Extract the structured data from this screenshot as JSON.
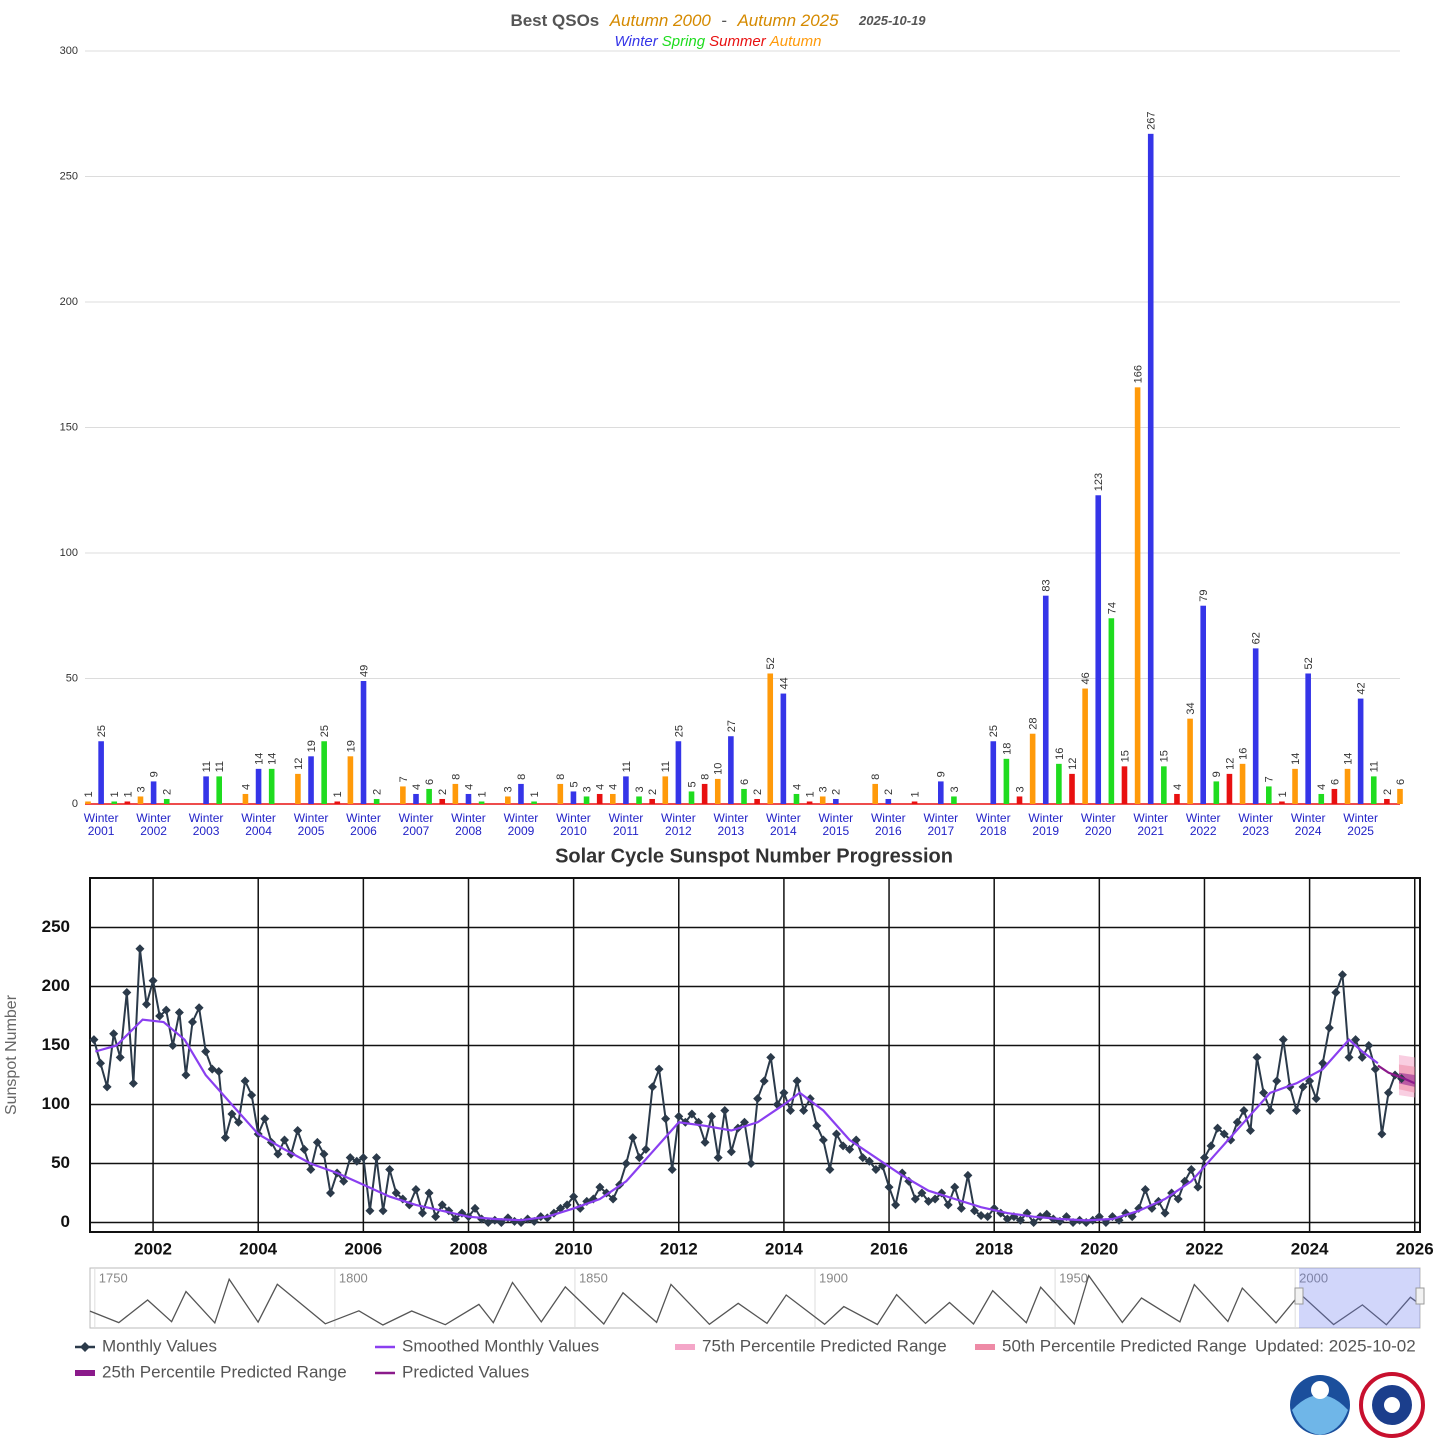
{
  "chart_data": [
    {
      "type": "bar",
      "title": "Best QSOs",
      "title_from": "Autumn 2000",
      "title_separator": "-",
      "title_to": "Autumn 2025",
      "date": "2025-10-19",
      "categories": [
        null,
        "Winter 2001",
        "Winter 2002",
        "Winter 2003",
        "Winter 2004",
        "Winter 2005",
        "Winter 2006",
        "Winter 2007",
        "Winter 2008",
        "Winter 2009",
        "Winter 2010",
        "Winter 2011",
        "Winter 2012",
        "Winter 2013",
        "Winter 2014",
        "Winter 2015",
        "Winter 2016",
        "Winter 2017",
        "Winter 2018",
        "Winter 2019",
        "Winter 2020",
        "Winter 2021",
        "Winter 2022",
        "Winter 2023",
        "Winter 2024",
        "Winter 2025"
      ],
      "series": [
        {
          "name": "Winter",
          "color": "#3535e8",
          "values": [
            null,
            25,
            9,
            11,
            14,
            19,
            49,
            4,
            4,
            8,
            5,
            11,
            25,
            27,
            44,
            2,
            2,
            9,
            25,
            83,
            123,
            267,
            79,
            62,
            52,
            42
          ]
        },
        {
          "name": "Spring",
          "color": "#1fdc1f",
          "values": [
            null,
            1,
            2,
            11,
            14,
            25,
            2,
            6,
            1,
            1,
            3,
            3,
            5,
            6,
            4,
            null,
            null,
            3,
            18,
            16,
            74,
            15,
            9,
            7,
            4,
            11
          ]
        },
        {
          "name": "Summer",
          "color": "#e81010",
          "values": [
            null,
            1,
            null,
            null,
            null,
            1,
            null,
            2,
            null,
            null,
            4,
            2,
            8,
            2,
            1,
            null,
            1,
            null,
            3,
            12,
            15,
            4,
            12,
            1,
            6,
            2
          ]
        },
        {
          "name": "Autumn",
          "color": "#ff9a0a",
          "values": [
            1,
            3,
            null,
            4,
            12,
            19,
            7,
            8,
            3,
            8,
            4,
            11,
            10,
            52,
            3,
            8,
            null,
            null,
            28,
            46,
            166,
            34,
            16,
            14,
            14,
            6
          ]
        }
      ],
      "ylim": [
        0,
        300
      ],
      "yticks": [
        0,
        50,
        100,
        150,
        200,
        250,
        300
      ],
      "grid": true
    },
    {
      "type": "line",
      "title": "Solar Cycle Sunspot Number Progression",
      "y_label": "Sunspot Number",
      "xlim": [
        2000.8,
        2026.1
      ],
      "xticks": [
        2002,
        2004,
        2006,
        2008,
        2010,
        2012,
        2014,
        2016,
        2018,
        2020,
        2022,
        2024,
        2026
      ],
      "ylim": [
        -8,
        292
      ],
      "yticks": [
        0,
        50,
        100,
        150,
        200,
        250
      ],
      "grid": true,
      "series": [
        {
          "name": "Monthly Values",
          "color": "#2b3a4a",
          "marker": "diamond",
          "x": [
            2000.875,
            2001,
            2001.125,
            2001.25,
            2001.375,
            2001.5,
            2001.625,
            2001.75,
            2001.875,
            2002,
            2002.125,
            2002.25,
            2002.375,
            2002.5,
            2002.625,
            2002.75,
            2002.875,
            2003,
            2003.125,
            2003.25,
            2003.375,
            2003.5,
            2003.625,
            2003.75,
            2003.875,
            2004,
            2004.125,
            2004.25,
            2004.375,
            2004.5,
            2004.625,
            2004.75,
            2004.875,
            2005,
            2005.125,
            2005.25,
            2005.375,
            2005.5,
            2005.625,
            2005.75,
            2005.875,
            2006,
            2006.125,
            2006.25,
            2006.375,
            2006.5,
            2006.625,
            2006.75,
            2006.875,
            2007,
            2007.125,
            2007.25,
            2007.375,
            2007.5,
            2007.625,
            2007.75,
            2007.875,
            2008,
            2008.125,
            2008.25,
            2008.375,
            2008.5,
            2008.625,
            2008.75,
            2008.875,
            2009,
            2009.125,
            2009.25,
            2009.375,
            2009.5,
            2009.625,
            2009.75,
            2009.875,
            2010,
            2010.125,
            2010.25,
            2010.375,
            2010.5,
            2010.625,
            2010.75,
            2010.875,
            2011,
            2011.125,
            2011.25,
            2011.375,
            2011.5,
            2011.625,
            2011.75,
            2011.875,
            2012,
            2012.125,
            2012.25,
            2012.375,
            2012.5,
            2012.625,
            2012.75,
            2012.875,
            2013,
            2013.125,
            2013.25,
            2013.375,
            2013.5,
            2013.625,
            2013.75,
            2013.875,
            2014,
            2014.125,
            2014.25,
            2014.375,
            2014.5,
            2014.625,
            2014.75,
            2014.875,
            2015,
            2015.125,
            2015.25,
            2015.375,
            2015.5,
            2015.625,
            2015.75,
            2015.875,
            2016,
            2016.125,
            2016.25,
            2016.375,
            2016.5,
            2016.625,
            2016.75,
            2016.875,
            2017,
            2017.125,
            2017.25,
            2017.375,
            2017.5,
            2017.625,
            2017.75,
            2017.875,
            2018,
            2018.125,
            2018.25,
            2018.375,
            2018.5,
            2018.625,
            2018.75,
            2018.875,
            2019,
            2019.125,
            2019.25,
            2019.375,
            2019.5,
            2019.625,
            2019.75,
            2019.875,
            2020,
            2020.125,
            2020.25,
            2020.375,
            2020.5,
            2020.625,
            2020.75,
            2020.875,
            2021,
            2021.125,
            2021.25,
            2021.375,
            2021.5,
            2021.625,
            2021.75,
            2021.875,
            2022,
            2022.125,
            2022.25,
            2022.375,
            2022.5,
            2022.625,
            2022.75,
            2022.875,
            2023,
            2023.125,
            2023.25,
            2023.375,
            2023.5,
            2023.625,
            2023.75,
            2023.875,
            2024,
            2024.125,
            2024.25,
            2024.375,
            2024.5,
            2024.625,
            2024.75,
            2024.875,
            2025,
            2025.125,
            2025.25,
            2025.375,
            2025.5,
            2025.625,
            2025.75
          ],
          "values": [
            155,
            135,
            115,
            160,
            140,
            195,
            118,
            232,
            185,
            205,
            175,
            180,
            150,
            178,
            125,
            170,
            182,
            145,
            130,
            128,
            72,
            92,
            85,
            120,
            108,
            75,
            88,
            68,
            58,
            70,
            58,
            78,
            62,
            45,
            68,
            58,
            25,
            42,
            35,
            55,
            52,
            55,
            10,
            55,
            10,
            45,
            25,
            20,
            15,
            28,
            8,
            25,
            5,
            15,
            10,
            3,
            8,
            5,
            12,
            3,
            0,
            2,
            0,
            4,
            1,
            0,
            3,
            1,
            5,
            4,
            8,
            12,
            15,
            22,
            12,
            18,
            20,
            30,
            25,
            20,
            32,
            50,
            72,
            55,
            62,
            115,
            130,
            88,
            45,
            90,
            85,
            92,
            85,
            68,
            90,
            55,
            95,
            60,
            80,
            85,
            50,
            105,
            120,
            140,
            100,
            110,
            95,
            120,
            95,
            105,
            82,
            70,
            45,
            75,
            65,
            62,
            70,
            55,
            52,
            45,
            48,
            30,
            15,
            42,
            35,
            20,
            25,
            18,
            20,
            25,
            15,
            30,
            12,
            40,
            10,
            6,
            5,
            12,
            8,
            3,
            5,
            2,
            8,
            0,
            5,
            7,
            3,
            1,
            5,
            0,
            2,
            0,
            2,
            5,
            0,
            5,
            2,
            8,
            5,
            12,
            28,
            12,
            18,
            8,
            25,
            20,
            35,
            45,
            30,
            55,
            65,
            80,
            75,
            70,
            85,
            95,
            78,
            140,
            110,
            95,
            120,
            155,
            115,
            95,
            115,
            120,
            105,
            135,
            165,
            195,
            210,
            140,
            155,
            140,
            150,
            130,
            75,
            110,
            125,
            122
          ]
        },
        {
          "name": "Smoothed Monthly Values",
          "color": "#8a3ff0",
          "x": [
            2000.9,
            2001.3,
            2001.8,
            2002.2,
            2002.6,
            2003,
            2003.5,
            2004,
            2004.5,
            2005,
            2005.5,
            2006,
            2006.5,
            2007,
            2007.5,
            2008,
            2008.5,
            2009,
            2009.5,
            2010,
            2010.5,
            2011,
            2011.5,
            2012,
            2012.5,
            2013,
            2013.5,
            2014,
            2014.3,
            2014.75,
            2015.25,
            2015.75,
            2016.25,
            2016.75,
            2017.25,
            2017.75,
            2018.25,
            2018.75,
            2019.25,
            2019.75,
            2020.25,
            2020.75,
            2021.25,
            2021.75,
            2022.25,
            2022.75,
            2023.25,
            2023.75,
            2024.25,
            2024.75,
            2025,
            2025.3
          ],
          "values": [
            145,
            150,
            172,
            170,
            155,
            125,
            100,
            75,
            62,
            50,
            42,
            32,
            22,
            15,
            10,
            5,
            3,
            2,
            5,
            12,
            20,
            35,
            60,
            85,
            82,
            78,
            85,
            100,
            110,
            95,
            70,
            55,
            40,
            27,
            20,
            13,
            8,
            5,
            3,
            1.8,
            3,
            10,
            20,
            35,
            60,
            85,
            110,
            118,
            130,
            155,
            145,
            135
          ]
        },
        {
          "name": "75th Percentile Predicted Range",
          "color": "#f4a6c8",
          "x": [
            2025.7,
            2026
          ],
          "lower": [
            108,
            106
          ],
          "upper": [
            142,
            140
          ]
        },
        {
          "name": "50th Percentile Predicted Range",
          "color": "#ee8aa6",
          "x": [
            2025.7,
            2026
          ],
          "lower": [
            113,
            110
          ],
          "upper": [
            134,
            132
          ]
        },
        {
          "name": "25th Percentile Predicted Range",
          "color": "#8b1a8b",
          "x": [
            2025.7,
            2026
          ],
          "lower": [
            118,
            115
          ],
          "upper": [
            127,
            125
          ]
        },
        {
          "name": "Predicted Values",
          "color": "#8b1a8b",
          "x": [
            2025.3,
            2025.5,
            2025.8,
            2026
          ],
          "values": [
            133,
            127,
            122,
            118
          ]
        }
      ],
      "updated": "Updated: 2025-10-02",
      "navigator": {
        "xlim": [
          1749,
          2026
        ],
        "ylim": [
          0,
          300
        ],
        "xticks": [
          1750,
          1800,
          1850,
          1900,
          1950,
          2000
        ],
        "color": "#555555",
        "x": [
          1749,
          1755,
          1761,
          1766,
          1769,
          1775,
          1778,
          1784,
          1788,
          1798,
          1805,
          1810,
          1816,
          1823,
          1830,
          1833,
          1837,
          1843,
          1848,
          1856,
          1860,
          1867,
          1870,
          1878,
          1884,
          1890,
          1894,
          1902,
          1906,
          1913,
          1917,
          1923,
          1928,
          1933,
          1937,
          1944,
          1947,
          1954,
          1957,
          1964,
          1968,
          1976,
          1979,
          1986,
          1989,
          1996,
          2001,
          2008,
          2014,
          2019,
          2024,
          2025.7
        ],
        "values": [
          80,
          14,
          144,
          19,
          193,
          12,
          264,
          17,
          235,
          7,
          82,
          0,
          81,
          2,
          119,
          13,
          245,
          18,
          220,
          6,
          186,
          15,
          234,
          4,
          125,
          9,
          173,
          4,
          106,
          3,
          175,
          9,
          130,
          6,
          198,
          13,
          218,
          6,
          285,
          15,
          156,
          18,
          233,
          20,
          213,
          12,
          180,
          3,
          116,
          2,
          160,
          125
        ]
      }
    }
  ]
}
